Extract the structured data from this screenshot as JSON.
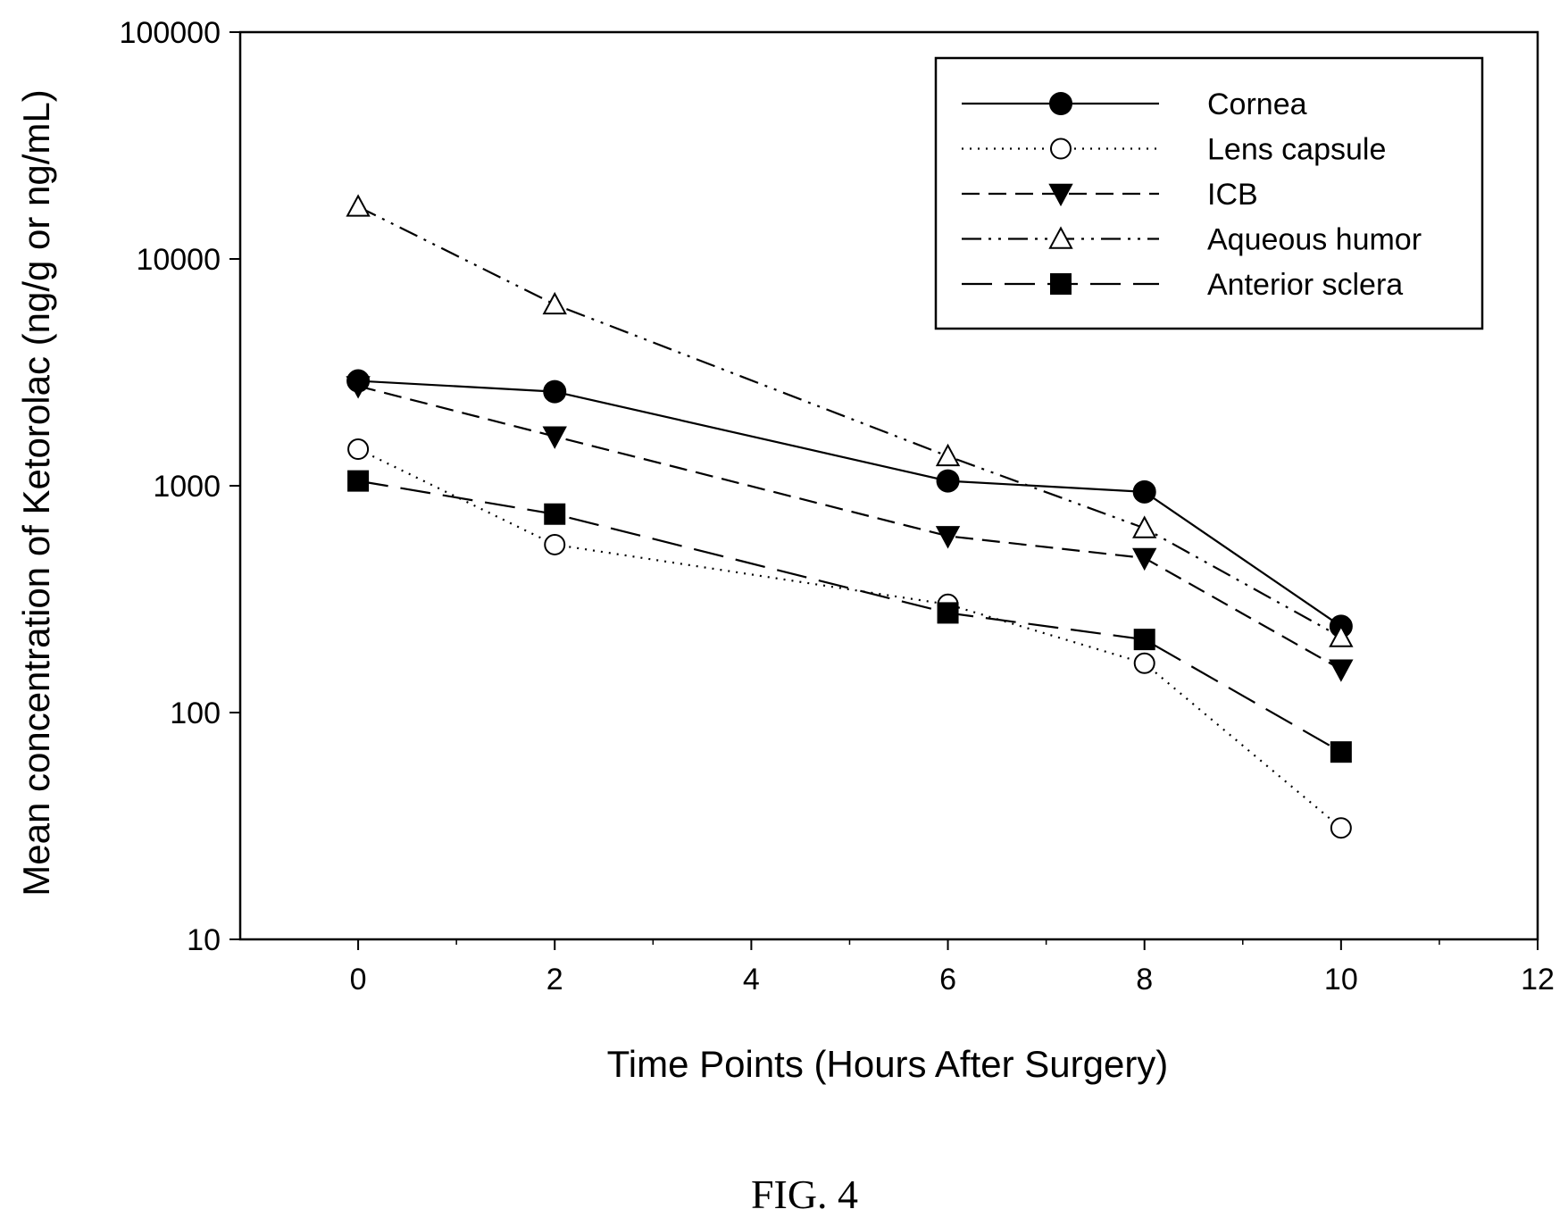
{
  "chart_data": {
    "type": "line",
    "title": "",
    "xlabel": "Time Points (Hours After Surgery)",
    "ylabel": "Mean concentration of Ketorolac (ng/g or ng/mL)",
    "xlim": [
      -1.2,
      12
    ],
    "ylim": [
      10,
      100000
    ],
    "yscale": "log",
    "x_ticks": [
      "0",
      "2",
      "4",
      "6",
      "8",
      "10",
      "12"
    ],
    "y_ticks": [
      "10",
      "100",
      "1000",
      "10000",
      "100000"
    ],
    "grid": false,
    "legend_position": "top-right",
    "series": [
      {
        "name": "Cornea",
        "marker": "filled-circle",
        "line": "solid",
        "x": [
          0,
          2,
          6,
          8,
          10
        ],
        "y": [
          2900,
          2600,
          1050,
          940,
          240
        ]
      },
      {
        "name": "Lens capsule",
        "marker": "open-circle",
        "line": "dotted",
        "x": [
          0,
          2,
          6,
          8,
          10
        ],
        "y": [
          1450,
          550,
          300,
          165,
          31
        ]
      },
      {
        "name": "ICB",
        "marker": "filled-triangle-down",
        "line": "dashed",
        "x": [
          0,
          2,
          6,
          8,
          10
        ],
        "y": [
          2750,
          1650,
          600,
          480,
          155
        ]
      },
      {
        "name": "Aqueous humor",
        "marker": "open-triangle-up",
        "line": "dash-dot-dot",
        "x": [
          0,
          2,
          6,
          8,
          10
        ],
        "y": [
          17000,
          6300,
          1350,
          650,
          215
        ]
      },
      {
        "name": "Anterior sclera",
        "marker": "filled-square",
        "line": "long-dash",
        "x": [
          0,
          2,
          6,
          8,
          10
        ],
        "y": [
          1050,
          750,
          275,
          210,
          67
        ]
      }
    ]
  },
  "caption": "FIG. 4"
}
